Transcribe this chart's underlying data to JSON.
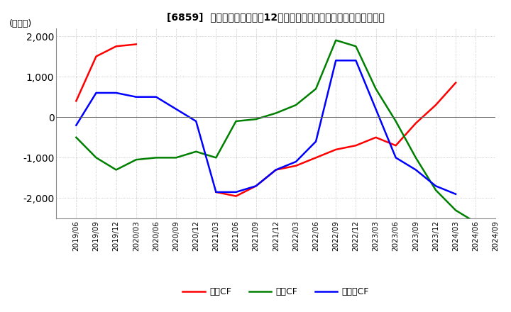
{
  "title": "[6859]  キャッシュフローの12か月移動合計の対前年同期増減額の推移",
  "ylabel": "(百万円)",
  "ylim": [
    -2500,
    2200
  ],
  "yticks": [
    -2000,
    -1000,
    0,
    1000,
    2000
  ],
  "legend_labels": [
    "営業CF",
    "投資CF",
    "フリーCF"
  ],
  "line_colors": [
    "#ff0000",
    "#008000",
    "#0000ff"
  ],
  "dates": [
    "2019/06",
    "2019/09",
    "2019/12",
    "2020/03",
    "2020/06",
    "2020/09",
    "2020/12",
    "2021/03",
    "2021/06",
    "2021/09",
    "2021/12",
    "2022/03",
    "2022/06",
    "2022/09",
    "2022/12",
    "2023/03",
    "2023/06",
    "2023/09",
    "2023/12",
    "2024/03",
    "2024/06",
    "2024/09"
  ],
  "operating_cf": [
    400,
    1500,
    1750,
    1800,
    null,
    null,
    null,
    -1850,
    -1950,
    -1700,
    -1300,
    -1200,
    -1000,
    -800,
    -700,
    -500,
    -700,
    -150,
    300,
    850,
    null,
    null
  ],
  "investing_cf": [
    -500,
    -1000,
    -1300,
    -1050,
    -1000,
    -1000,
    -850,
    -1000,
    -100,
    -50,
    100,
    300,
    700,
    1900,
    1750,
    700,
    -100,
    -1000,
    -1800,
    -2300,
    -2600,
    null
  ],
  "free_cf": [
    -200,
    600,
    600,
    500,
    500,
    200,
    -100,
    -1850,
    -1850,
    -1700,
    -1300,
    -1100,
    -600,
    1400,
    1400,
    200,
    -1000,
    -1300,
    -1700,
    -1900,
    null,
    null
  ],
  "background_color": "#ffffff",
  "grid_color": "#aaaaaa",
  "grid_style": "dotted",
  "linewidth": 1.8
}
